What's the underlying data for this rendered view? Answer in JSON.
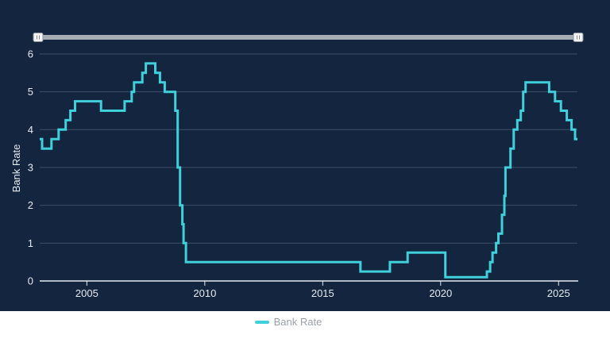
{
  "chart_data": {
    "type": "line",
    "interpolation": "step-after",
    "ylabel": "Bank Rate",
    "xlim": [
      2003.0,
      2025.8
    ],
    "ylim": [
      0,
      6
    ],
    "yticks": [
      0,
      1,
      2,
      3,
      4,
      5,
      6
    ],
    "xticks": [
      2005,
      2010,
      2015,
      2020,
      2025
    ],
    "grid": "horizontal",
    "legend_position": "bottom-center",
    "series": [
      {
        "name": "Bank Rate",
        "color": "#3fd0dc",
        "points": [
          [
            2003.0,
            3.75
          ],
          [
            2003.1,
            3.5
          ],
          [
            2003.5,
            3.75
          ],
          [
            2003.8,
            4.0
          ],
          [
            2004.1,
            4.25
          ],
          [
            2004.3,
            4.5
          ],
          [
            2004.5,
            4.75
          ],
          [
            2005.6,
            4.5
          ],
          [
            2006.6,
            4.75
          ],
          [
            2006.9,
            5.0
          ],
          [
            2007.0,
            5.25
          ],
          [
            2007.35,
            5.5
          ],
          [
            2007.5,
            5.75
          ],
          [
            2007.9,
            5.5
          ],
          [
            2008.1,
            5.25
          ],
          [
            2008.3,
            5.0
          ],
          [
            2008.75,
            4.5
          ],
          [
            2008.85,
            3.0
          ],
          [
            2008.95,
            2.0
          ],
          [
            2009.05,
            1.5
          ],
          [
            2009.1,
            1.0
          ],
          [
            2009.2,
            0.5
          ],
          [
            2016.6,
            0.25
          ],
          [
            2017.85,
            0.5
          ],
          [
            2018.6,
            0.75
          ],
          [
            2020.2,
            0.1
          ],
          [
            2021.96,
            0.25
          ],
          [
            2022.1,
            0.5
          ],
          [
            2022.2,
            0.75
          ],
          [
            2022.35,
            1.0
          ],
          [
            2022.45,
            1.25
          ],
          [
            2022.6,
            1.75
          ],
          [
            2022.7,
            2.25
          ],
          [
            2022.75,
            3.0
          ],
          [
            2022.96,
            3.5
          ],
          [
            2023.1,
            4.0
          ],
          [
            2023.25,
            4.25
          ],
          [
            2023.4,
            4.5
          ],
          [
            2023.5,
            5.0
          ],
          [
            2023.6,
            5.25
          ],
          [
            2024.6,
            5.0
          ],
          [
            2024.85,
            4.75
          ],
          [
            2025.1,
            4.5
          ],
          [
            2025.35,
            4.25
          ],
          [
            2025.55,
            4.0
          ],
          [
            2025.7,
            3.75
          ],
          [
            2025.8,
            3.75
          ]
        ]
      }
    ]
  },
  "legend": {
    "label": "Bank Rate",
    "color": "#3fd0dc"
  }
}
